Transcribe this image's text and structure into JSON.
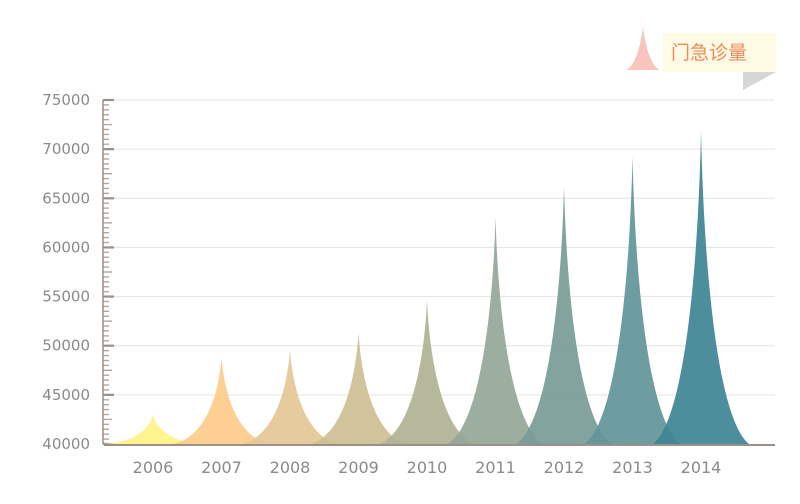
{
  "chart_data": {
    "type": "bar",
    "categories": [
      "2006",
      "2007",
      "2008",
      "2009",
      "2010",
      "2011",
      "2012",
      "2013",
      "2014"
    ],
    "series": [
      {
        "name": "门急诊量",
        "values": [
          43000,
          48800,
          49600,
          51400,
          54600,
          63000,
          66200,
          69200,
          71800
        ]
      }
    ],
    "yticks": [
      40000,
      45000,
      50000,
      55000,
      60000,
      65000,
      70000,
      75000
    ],
    "ylim": [
      40000,
      75000
    ],
    "grid": true,
    "legend": "top-right",
    "colors": [
      "#fff387",
      "#fdcb8a",
      "#e4c797",
      "#cdc092",
      "#b0b394",
      "#93a898",
      "#7a9c98",
      "#62949a",
      "#3f8596"
    ]
  }
}
